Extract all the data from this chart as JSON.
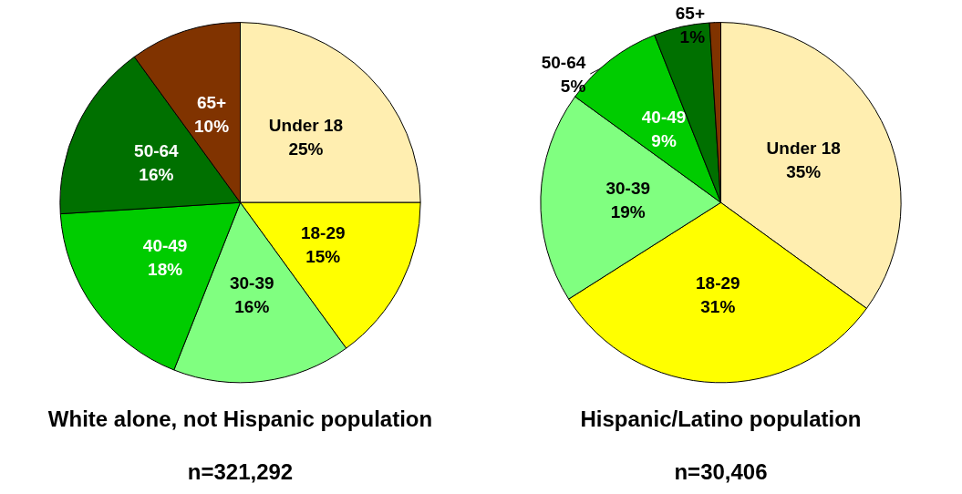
{
  "chart_data": [
    {
      "type": "pie",
      "title": "White alone, not Hispanic population",
      "annotations": [
        "n=321,292"
      ],
      "categories": [
        "Under 18",
        "18-29",
        "30-39",
        "40-49",
        "50-64",
        "65+"
      ],
      "values": [
        25,
        15,
        16,
        18,
        16,
        10
      ],
      "value_labels": [
        "25%",
        "15%",
        "16%",
        "18%",
        "16%",
        "10%"
      ],
      "colors": [
        "#ffeeb0",
        "#ffff00",
        "#80ff80",
        "#00cc00",
        "#007000",
        "#803300"
      ],
      "legend": false
    },
    {
      "type": "pie",
      "title": "Hispanic/Latino population",
      "annotations": [
        "n=30,406"
      ],
      "categories": [
        "Under 18",
        "18-29",
        "30-39",
        "40-49",
        "50-64",
        "65+"
      ],
      "values": [
        35,
        31,
        19,
        9,
        5,
        1
      ],
      "value_labels": [
        "35%",
        "31%",
        "19%",
        "9%",
        "5%",
        "1%"
      ],
      "colors": [
        "#ffeeb0",
        "#ffff00",
        "#80ff80",
        "#00cc00",
        "#007000",
        "#803300"
      ],
      "legend": false
    }
  ]
}
